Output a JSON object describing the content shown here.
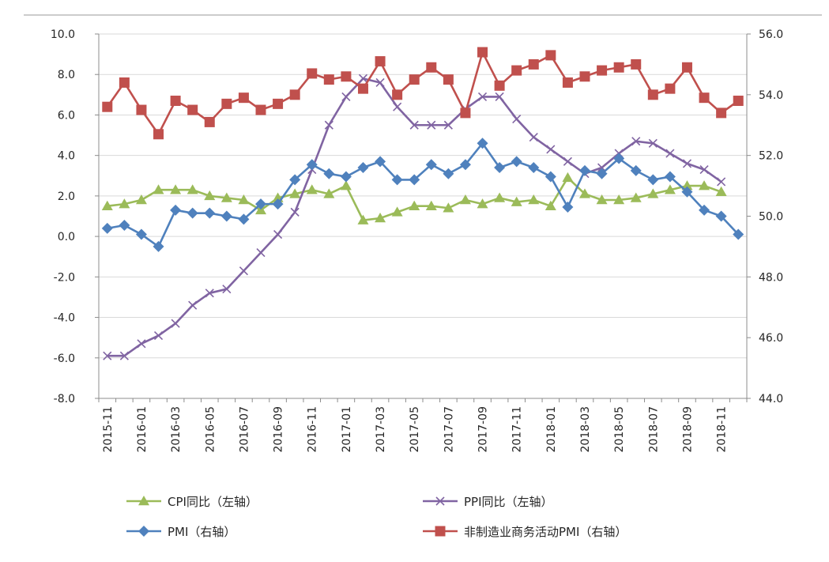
{
  "chart_data": {
    "type": "line",
    "categories": [
      "2015-11",
      "2015-12",
      "2016-01",
      "2016-02",
      "2016-03",
      "2016-04",
      "2016-05",
      "2016-06",
      "2016-07",
      "2016-08",
      "2016-09",
      "2016-10",
      "2016-11",
      "2016-12",
      "2017-01",
      "2017-02",
      "2017-03",
      "2017-04",
      "2017-05",
      "2017-06",
      "2017-07",
      "2017-08",
      "2017-09",
      "2017-10",
      "2017-11",
      "2017-12",
      "2018-01",
      "2018-02",
      "2018-03",
      "2018-04",
      "2018-05",
      "2018-06",
      "2018-07",
      "2018-08",
      "2018-09",
      "2018-10",
      "2018-11",
      "2018-12"
    ],
    "x_tick_labels": [
      "2015-11",
      "2016-01",
      "2016-03",
      "2016-05",
      "2016-07",
      "2016-09",
      "2016-11",
      "2017-01",
      "2017-03",
      "2017-05",
      "2017-07",
      "2017-09",
      "2017-11",
      "2018-01",
      "2018-03",
      "2018-05",
      "2018-07",
      "2018-09",
      "2018-11"
    ],
    "y_left": {
      "range": [
        -8,
        10
      ],
      "ticks": [
        "-8.0",
        "-6.0",
        "-4.0",
        "-2.0",
        "0.0",
        "2.0",
        "4.0",
        "6.0",
        "8.0",
        "10.0"
      ]
    },
    "y_right": {
      "range": [
        44,
        56
      ],
      "ticks": [
        "44.0",
        "46.0",
        "48.0",
        "50.0",
        "52.0",
        "54.0",
        "56.0"
      ]
    },
    "grid": true,
    "legend_position": "bottom",
    "series": [
      {
        "name": "CPI同比（左轴）",
        "axis": "left",
        "color": "#9BBB59",
        "marker": "triangle",
        "values": [
          1.5,
          1.6,
          1.8,
          2.3,
          2.3,
          2.3,
          2.0,
          1.9,
          1.8,
          1.3,
          1.9,
          2.1,
          2.3,
          2.1,
          2.5,
          0.8,
          0.9,
          1.2,
          1.5,
          1.5,
          1.4,
          1.8,
          1.6,
          1.9,
          1.7,
          1.8,
          1.5,
          2.9,
          2.1,
          1.8,
          1.8,
          1.9,
          2.1,
          2.3,
          2.5,
          2.5,
          2.2,
          null
        ]
      },
      {
        "name": "PPI同比（左轴）",
        "axis": "left",
        "color": "#8064A2",
        "marker": "x",
        "values": [
          -5.9,
          -5.9,
          -5.3,
          -4.9,
          -4.3,
          -3.4,
          -2.8,
          -2.6,
          -1.7,
          -0.8,
          0.1,
          1.2,
          3.3,
          5.5,
          6.9,
          7.8,
          7.6,
          6.4,
          5.5,
          5.5,
          5.5,
          6.3,
          6.9,
          6.9,
          5.8,
          4.9,
          4.3,
          3.7,
          3.1,
          3.4,
          4.1,
          4.7,
          4.6,
          4.1,
          3.6,
          3.3,
          2.7,
          null
        ]
      },
      {
        "name": "PMI（右轴）",
        "axis": "right",
        "color": "#4F81BD",
        "marker": "diamond",
        "values": [
          49.6,
          49.7,
          49.4,
          49.0,
          50.2,
          50.1,
          50.1,
          50.0,
          49.9,
          50.4,
          50.4,
          51.2,
          51.7,
          51.4,
          51.3,
          51.6,
          51.8,
          51.2,
          51.2,
          51.7,
          51.4,
          51.7,
          52.4,
          51.6,
          51.8,
          51.6,
          51.3,
          50.3,
          51.5,
          51.4,
          51.9,
          51.5,
          51.2,
          51.3,
          50.8,
          50.2,
          50.0,
          49.4
        ]
      },
      {
        "name": "非制造业商务活动PMI（右轴）",
        "axis": "right",
        "color": "#C0504D",
        "marker": "square",
        "values": [
          53.6,
          54.4,
          53.5,
          52.7,
          53.8,
          53.5,
          53.1,
          53.7,
          53.9,
          53.5,
          53.7,
          54.0,
          54.7,
          54.5,
          54.6,
          54.2,
          55.1,
          54.0,
          54.5,
          54.9,
          54.5,
          53.4,
          55.4,
          54.3,
          54.8,
          55.0,
          55.3,
          54.4,
          54.6,
          54.8,
          54.9,
          55.0,
          54.0,
          54.2,
          54.9,
          53.9,
          53.4,
          53.8
        ]
      }
    ]
  }
}
